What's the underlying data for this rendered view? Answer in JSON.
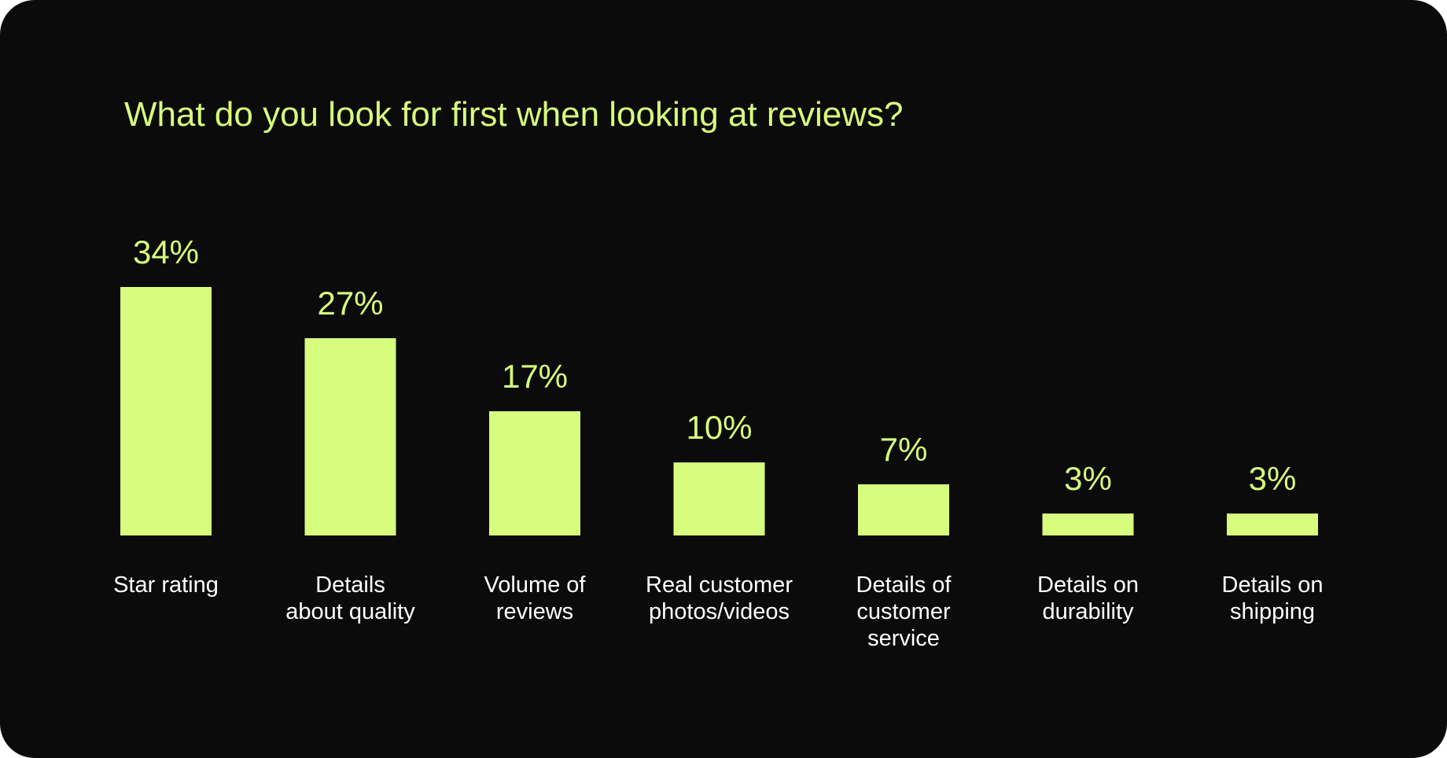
{
  "chart_data": {
    "type": "bar",
    "title": "What do you look for first when looking at reviews?",
    "xlabel": "",
    "ylabel": "",
    "categories": [
      [
        "Star rating"
      ],
      [
        "Details",
        "about quality"
      ],
      [
        "Volume of",
        "reviews"
      ],
      [
        "Real customer",
        "photos/videos"
      ],
      [
        "Details of",
        "customer",
        "service"
      ],
      [
        "Details on",
        "durability"
      ],
      [
        "Details on",
        "shipping"
      ]
    ],
    "values": [
      34,
      27,
      17,
      10,
      7,
      3,
      3
    ],
    "value_labels": [
      "34%",
      "27%",
      "17%",
      "10%",
      "7%",
      "3%",
      "3%"
    ],
    "unit": "%",
    "ylim": [
      0,
      34
    ],
    "grid": false,
    "legend": "none",
    "colors": {
      "background": "#0b0b0b",
      "bar": "#d8fc7d",
      "value_text": "#d8fb7c",
      "title_text": "#d8fb7c",
      "category_text": "#ffffff"
    }
  }
}
